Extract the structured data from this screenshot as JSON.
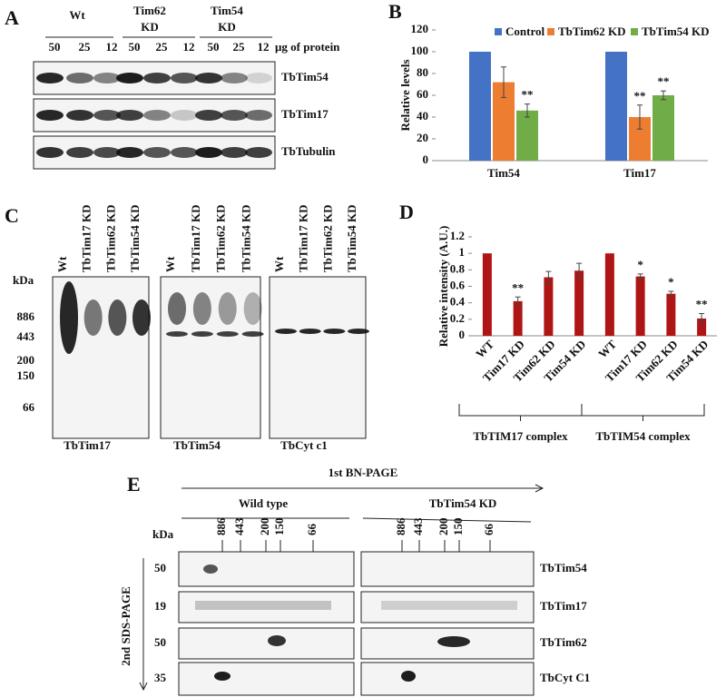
{
  "panel_a": {
    "label": "A",
    "groups": [
      "Wt",
      "Tim62",
      "KD",
      "Tim54",
      "KD"
    ],
    "lanes": [
      "50",
      "25",
      "12",
      "50",
      "25",
      "12",
      "50",
      "25",
      "12"
    ],
    "unit": "μg of protein",
    "blots": [
      "TbTim54",
      "TbTim17",
      "TbTubulin"
    ]
  },
  "chart_data": [
    {
      "type": "bar",
      "label": "B",
      "ylabel": "Relative levels",
      "categories": [
        "Tim54",
        "Tim17"
      ],
      "series": [
        {
          "name": "Control",
          "color": "#4472c4",
          "values": [
            100,
            100
          ]
        },
        {
          "name": "TbTim62 KD",
          "color": "#ed7d31",
          "values": [
            72,
            40
          ],
          "errors": [
            14,
            11
          ],
          "annotations": [
            null,
            "**"
          ]
        },
        {
          "name": "TbTim54 KD",
          "color": "#70ad47",
          "values": [
            46,
            60
          ],
          "errors": [
            6,
            4
          ],
          "annotations": [
            "**",
            "**"
          ]
        }
      ],
      "ylim": [
        0,
        120
      ],
      "yticks": [
        0,
        20,
        40,
        60,
        80,
        100,
        120
      ],
      "legend": "top"
    },
    {
      "type": "bar",
      "label": "D",
      "ylabel": "Relative intensity (A.U.)",
      "color": "#b01515",
      "categories": [
        "WT",
        "Tim17 KD",
        "Tim62 KD",
        "Tim54 KD",
        "WT",
        "Tim17 KD",
        "Tim62 KD",
        "Tim54 KD"
      ],
      "values": [
        1,
        0.42,
        0.71,
        0.79,
        1,
        0.72,
        0.51,
        0.21
      ],
      "errors": [
        null,
        0.05,
        0.07,
        0.09,
        null,
        0.03,
        0.03,
        0.06
      ],
      "annotations": [
        null,
        "**",
        null,
        null,
        null,
        "*",
        "*",
        "**"
      ],
      "groups": [
        "TbTIM17 complex",
        "TbTIM54 complex"
      ],
      "ylim": [
        0,
        1.2
      ],
      "yticks": [
        0,
        0.2,
        0.4,
        0.6,
        0.8,
        1,
        1.2
      ]
    }
  ],
  "panel_c": {
    "label": "C",
    "kda": "kDa",
    "markers": [
      "886",
      "443",
      "200",
      "150",
      "66"
    ],
    "blots": [
      {
        "lanes": [
          "Wt",
          "TbTim17 KD",
          "TbTim62 KD",
          "TbTim54 KD"
        ],
        "caption": "TbTim17"
      },
      {
        "lanes": [
          "Wt",
          "TbTim17 KD",
          "TbTim62 KD",
          "TbTim54 KD"
        ],
        "caption": "TbTim54"
      },
      {
        "lanes": [
          "Wt",
          "TbTim17 KD",
          "TbTim62 KD",
          "TbTim54 KD"
        ],
        "caption": "TbCyt c1"
      }
    ]
  },
  "panel_e": {
    "label": "E",
    "first_dim": "1st BN-PAGE",
    "second_dim": "2nd SDS-PAGE",
    "kda": "kDa",
    "conditions": [
      "Wild type",
      "TbTim54 KD"
    ],
    "markers": [
      "886",
      "443",
      "200",
      "150",
      "66"
    ],
    "rows": [
      {
        "mw": "50",
        "protein": "TbTim54"
      },
      {
        "mw": "19",
        "protein": "TbTim17"
      },
      {
        "mw": "50",
        "protein": "TbTim62"
      },
      {
        "mw": "35",
        "protein": "TbCyt C1"
      }
    ]
  }
}
